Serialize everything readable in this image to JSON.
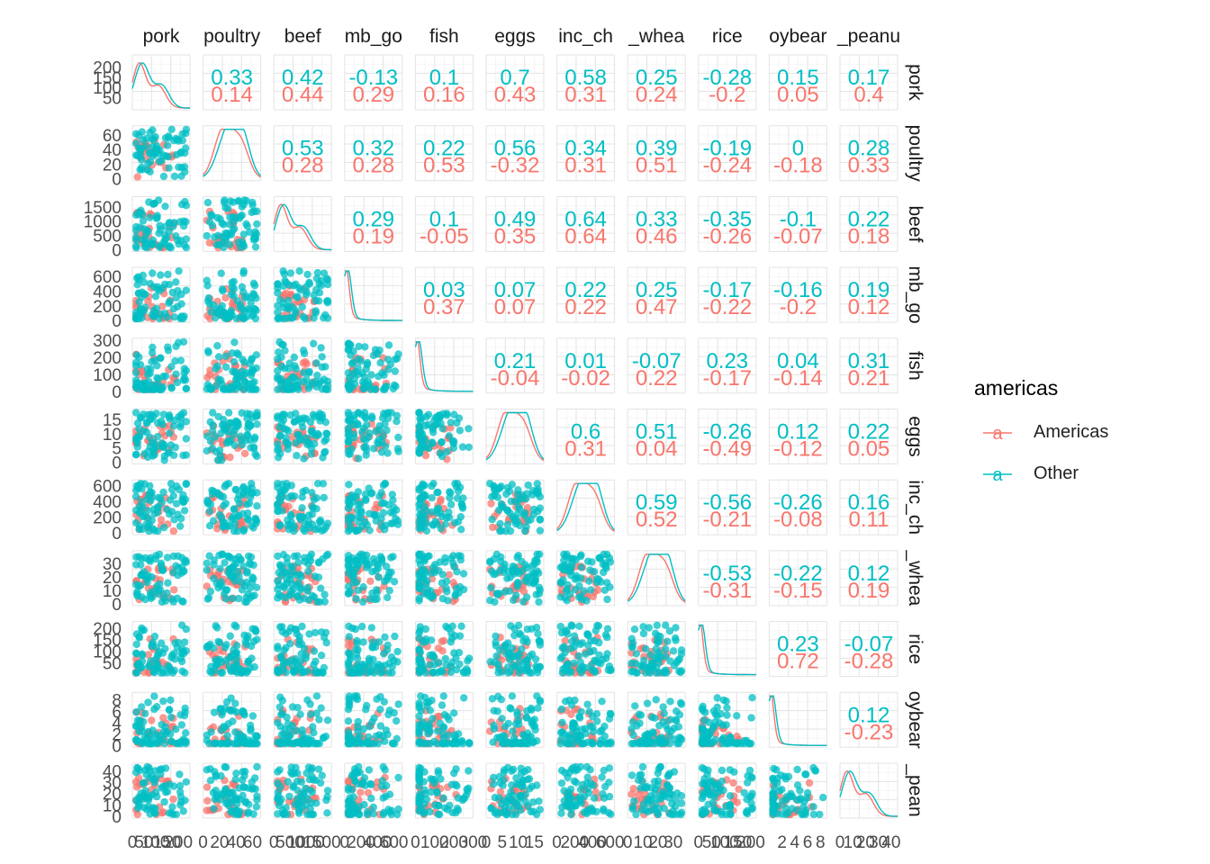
{
  "chart_data": {
    "type": "scatter",
    "variables": [
      "pork",
      "poultry",
      "beef",
      "lamb_goat",
      "fish",
      "eggs",
      "milk_inc_cheese",
      "wheat_and_wheat_products",
      "rice",
      "soybeans",
      "nuts_inc_peanut_butter"
    ],
    "strip_labels": {
      "top": [
        "pork",
        "poultry",
        "beef",
        "mb_go",
        "fish",
        "eggs",
        "inc_ch",
        "_whea",
        "rice",
        "oybear",
        "_peanu"
      ],
      "right": [
        "pork",
        "poultry",
        "beef",
        "mb_go",
        "fish",
        "eggs",
        "inc_ch",
        "_whea",
        "rice",
        "oybear",
        "_pean"
      ]
    },
    "group_variable": "americas",
    "groups": [
      {
        "name": "Americas",
        "color": "#F8766D"
      },
      {
        "name": "Other",
        "color": "#00BFC4"
      }
    ],
    "legend": {
      "title": "americas",
      "position": "right",
      "labels": [
        "Americas",
        "Other"
      ],
      "key_glyph": "a"
    },
    "ranges": {
      "pork": [
        0,
        250
      ],
      "poultry": [
        0,
        70
      ],
      "beef": [
        0,
        1800
      ],
      "lamb_goat": [
        0,
        700
      ],
      "fish": [
        0,
        300
      ],
      "eggs": [
        0,
        18
      ],
      "milk_inc_cheese": [
        0,
        650
      ],
      "wheat_and_wheat_products": [
        0,
        38
      ],
      "rice": [
        0,
        220
      ],
      "soybeans": [
        0,
        9
      ],
      "nuts_inc_peanut_butter": [
        0,
        45
      ]
    },
    "y_ticks": [
      [
        "200",
        "150",
        "100",
        "50"
      ],
      [
        "60",
        "40",
        "20",
        "0"
      ],
      [
        "1500",
        "1000",
        "500",
        "0"
      ],
      [
        "600",
        "400",
        "200",
        "0"
      ],
      [
        "300",
        "200",
        "100",
        "0"
      ],
      [
        "15",
        "10",
        "5",
        "0"
      ],
      [
        "600",
        "400",
        "200",
        "0"
      ],
      [
        "30",
        "20",
        "10",
        "0"
      ],
      [
        "200",
        "150",
        "100",
        "50"
      ],
      [
        "8",
        "6",
        "4",
        "2",
        "0"
      ],
      [
        "40",
        "30",
        "20",
        "10",
        "0"
      ]
    ],
    "y_tick_values": [
      [
        200,
        150,
        100,
        50
      ],
      [
        60,
        40,
        20,
        0
      ],
      [
        1500,
        1000,
        500,
        0
      ],
      [
        600,
        400,
        200,
        0
      ],
      [
        300,
        200,
        100,
        0
      ],
      [
        15,
        10,
        5,
        0
      ],
      [
        600,
        400,
        200,
        0
      ],
      [
        30,
        20,
        10,
        0
      ],
      [
        200,
        150,
        100,
        50
      ],
      [
        8,
        6,
        4,
        2,
        0
      ],
      [
        40,
        30,
        20,
        10,
        0
      ]
    ],
    "x_ticks": [
      [
        "0",
        "50",
        "100",
        "150",
        "200"
      ],
      [
        "0",
        "20",
        "40",
        "60"
      ],
      [
        "0",
        "500",
        "1000",
        "1500"
      ],
      [
        "0",
        "200",
        "400",
        "600"
      ],
      [
        "0",
        "100",
        "200",
        "300"
      ],
      [
        "0",
        "5",
        "10",
        "15"
      ],
      [
        "0",
        "200",
        "400",
        "600"
      ],
      [
        "0",
        "10",
        "20",
        "30"
      ],
      [
        "0",
        "50",
        "100",
        "150",
        "200"
      ],
      [
        "2",
        "4",
        "6",
        "8"
      ],
      [
        "0",
        "10",
        "20",
        "30",
        "40"
      ]
    ],
    "x_tick_values": [
      [
        0,
        50,
        100,
        150,
        200
      ],
      [
        0,
        20,
        40,
        60
      ],
      [
        0,
        500,
        1000,
        1500
      ],
      [
        0,
        200,
        400,
        600
      ],
      [
        0,
        100,
        200,
        300
      ],
      [
        0,
        5,
        10,
        15
      ],
      [
        0,
        200,
        400,
        600
      ],
      [
        0,
        10,
        20,
        30
      ],
      [
        0,
        50,
        100,
        150,
        200
      ],
      [
        2,
        4,
        6,
        8
      ],
      [
        0,
        10,
        20,
        30,
        40
      ]
    ],
    "correlations": [
      {
        "row": 0,
        "col": 1,
        "other": "0.33",
        "americas": "0.14"
      },
      {
        "row": 0,
        "col": 2,
        "other": "0.42",
        "americas": "0.44"
      },
      {
        "row": 0,
        "col": 3,
        "other": "-0.13",
        "americas": "0.29"
      },
      {
        "row": 0,
        "col": 4,
        "other": "0.1",
        "americas": "0.16"
      },
      {
        "row": 0,
        "col": 5,
        "other": "0.7",
        "americas": "0.43"
      },
      {
        "row": 0,
        "col": 6,
        "other": "0.58",
        "americas": "0.31"
      },
      {
        "row": 0,
        "col": 7,
        "other": "0.25",
        "americas": "0.24"
      },
      {
        "row": 0,
        "col": 8,
        "other": "-0.28",
        "americas": "-0.2"
      },
      {
        "row": 0,
        "col": 9,
        "other": "0.15",
        "americas": "0.05"
      },
      {
        "row": 0,
        "col": 10,
        "other": "0.17",
        "americas": "0.4"
      },
      {
        "row": 1,
        "col": 2,
        "other": "0.53",
        "americas": "0.28"
      },
      {
        "row": 1,
        "col": 3,
        "other": "0.32",
        "americas": "0.28"
      },
      {
        "row": 1,
        "col": 4,
        "other": "0.22",
        "americas": "0.53"
      },
      {
        "row": 1,
        "col": 5,
        "other": "0.56",
        "americas": "-0.32"
      },
      {
        "row": 1,
        "col": 6,
        "other": "0.34",
        "americas": "0.31"
      },
      {
        "row": 1,
        "col": 7,
        "other": "0.39",
        "americas": "0.51"
      },
      {
        "row": 1,
        "col": 8,
        "other": "-0.19",
        "americas": "-0.24"
      },
      {
        "row": 1,
        "col": 9,
        "other": "0",
        "americas": "-0.18"
      },
      {
        "row": 1,
        "col": 10,
        "other": "0.28",
        "americas": "0.33"
      },
      {
        "row": 2,
        "col": 3,
        "other": "0.29",
        "americas": "0.19"
      },
      {
        "row": 2,
        "col": 4,
        "other": "0.1",
        "americas": "-0.05"
      },
      {
        "row": 2,
        "col": 5,
        "other": "0.49",
        "americas": "0.35"
      },
      {
        "row": 2,
        "col": 6,
        "other": "0.64",
        "americas": "0.64"
      },
      {
        "row": 2,
        "col": 7,
        "other": "0.33",
        "americas": "0.46"
      },
      {
        "row": 2,
        "col": 8,
        "other": "-0.35",
        "americas": "-0.26"
      },
      {
        "row": 2,
        "col": 9,
        "other": "-0.1",
        "americas": "-0.07"
      },
      {
        "row": 2,
        "col": 10,
        "other": "0.22",
        "americas": "0.18"
      },
      {
        "row": 3,
        "col": 4,
        "other": "0.03",
        "americas": "0.37"
      },
      {
        "row": 3,
        "col": 5,
        "other": "0.07",
        "americas": "0.07"
      },
      {
        "row": 3,
        "col": 6,
        "other": "0.22",
        "americas": "0.22"
      },
      {
        "row": 3,
        "col": 7,
        "other": "0.25",
        "americas": "0.47"
      },
      {
        "row": 3,
        "col": 8,
        "other": "-0.17",
        "americas": "-0.22"
      },
      {
        "row": 3,
        "col": 9,
        "other": "-0.16",
        "americas": "-0.2"
      },
      {
        "row": 3,
        "col": 10,
        "other": "0.19",
        "americas": "0.12"
      },
      {
        "row": 4,
        "col": 5,
        "other": "0.21",
        "americas": "-0.04"
      },
      {
        "row": 4,
        "col": 6,
        "other": "0.01",
        "americas": "-0.02"
      },
      {
        "row": 4,
        "col": 7,
        "other": "-0.07",
        "americas": "0.22"
      },
      {
        "row": 4,
        "col": 8,
        "other": "0.23",
        "americas": "-0.17"
      },
      {
        "row": 4,
        "col": 9,
        "other": "0.04",
        "americas": "-0.14"
      },
      {
        "row": 4,
        "col": 10,
        "other": "0.31",
        "americas": "0.21"
      },
      {
        "row": 5,
        "col": 6,
        "other": "0.6",
        "americas": "0.31"
      },
      {
        "row": 5,
        "col": 7,
        "other": "0.51",
        "americas": "0.04"
      },
      {
        "row": 5,
        "col": 8,
        "other": "-0.26",
        "americas": "-0.49"
      },
      {
        "row": 5,
        "col": 9,
        "other": "0.12",
        "americas": "-0.12"
      },
      {
        "row": 5,
        "col": 10,
        "other": "0.22",
        "americas": "0.05"
      },
      {
        "row": 6,
        "col": 7,
        "other": "0.59",
        "americas": "0.52"
      },
      {
        "row": 6,
        "col": 8,
        "other": "-0.56",
        "americas": "-0.21"
      },
      {
        "row": 6,
        "col": 9,
        "other": "-0.26",
        "americas": "-0.08"
      },
      {
        "row": 6,
        "col": 10,
        "other": "0.16",
        "americas": "0.11"
      },
      {
        "row": 7,
        "col": 8,
        "other": "-0.53",
        "americas": "-0.31"
      },
      {
        "row": 7,
        "col": 9,
        "other": "-0.22",
        "americas": "-0.15"
      },
      {
        "row": 7,
        "col": 10,
        "other": "0.12",
        "americas": "0.19"
      },
      {
        "row": 8,
        "col": 9,
        "other": "0.23",
        "americas": "0.72"
      },
      {
        "row": 8,
        "col": 10,
        "other": "-0.07",
        "americas": "-0.28"
      },
      {
        "row": 9,
        "col": 10,
        "other": "0.12",
        "americas": "-0.23"
      }
    ],
    "grid": true,
    "background": "white"
  }
}
